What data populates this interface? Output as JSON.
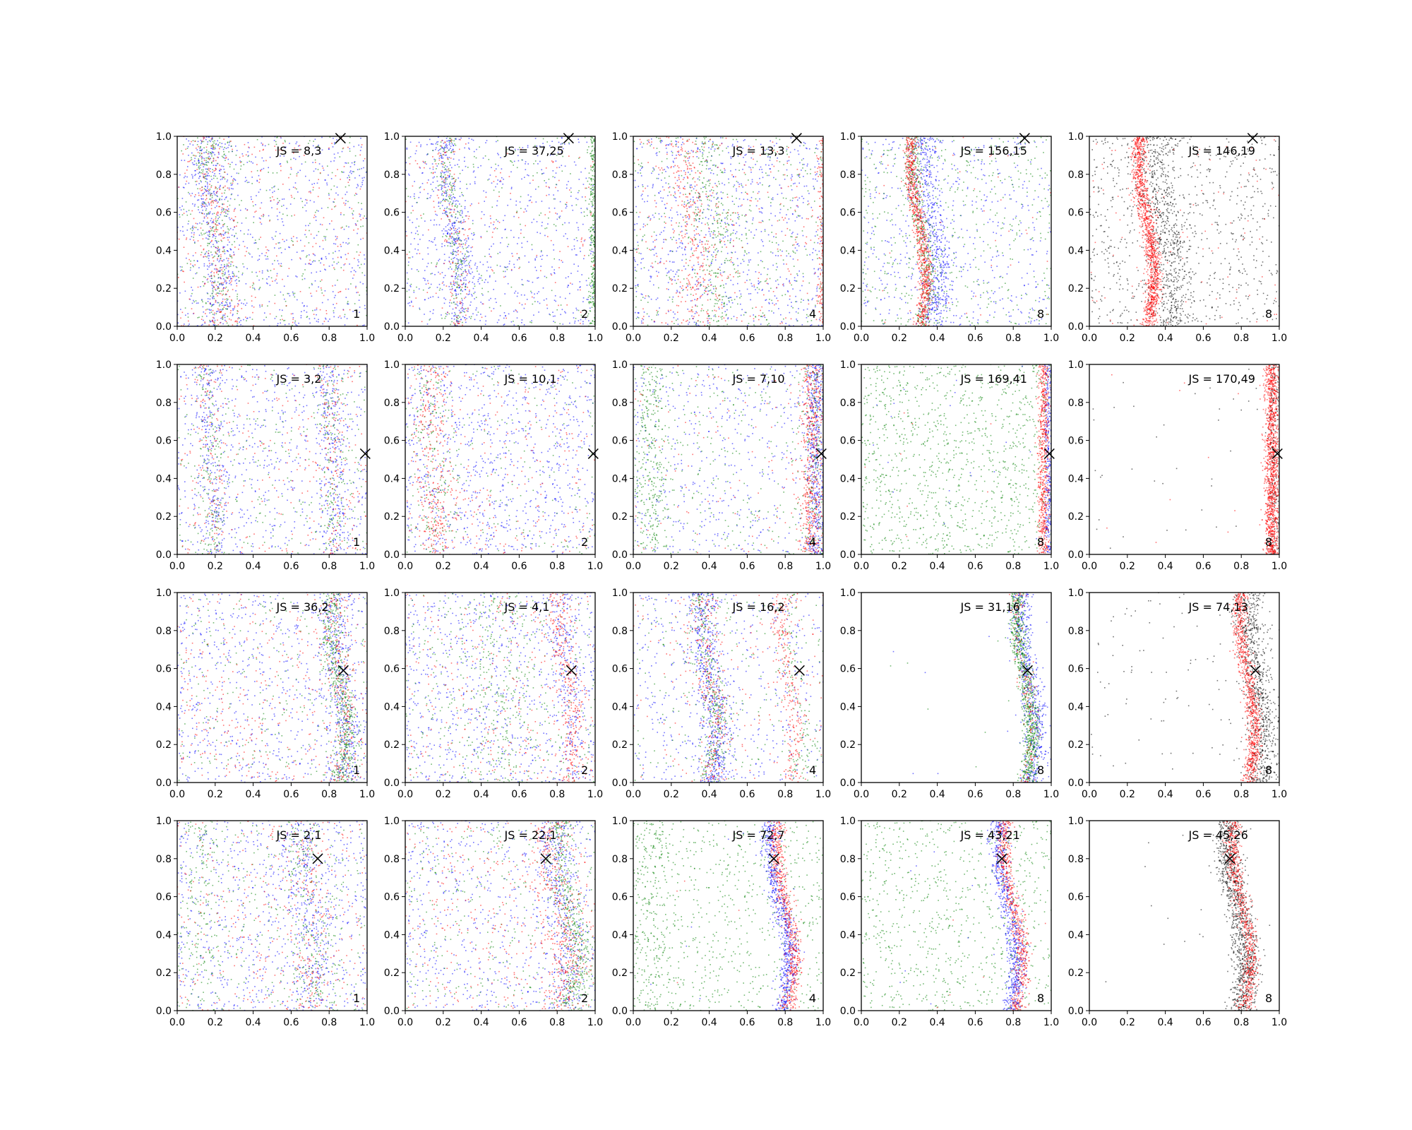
{
  "chart_data": {
    "type": "scatter",
    "layout": {
      "rows": 4,
      "cols": 5
    },
    "x_ticks": [
      "0.0",
      "0.2",
      "0.4",
      "0.6",
      "0.8",
      "1.0"
    ],
    "y_ticks": [
      "0.0",
      "0.2",
      "0.4",
      "0.6",
      "0.8",
      "1.0"
    ],
    "xlim": [
      0,
      1
    ],
    "ylim": [
      0,
      1
    ],
    "grid": false,
    "colors": {
      "blue": "#0000ff",
      "green": "#008000",
      "red": "#ff0000",
      "black": "#000000"
    },
    "panels": [
      {
        "label": "JS = 8,3",
        "n": "1",
        "marker": [
          0.86,
          0.99
        ],
        "series": [
          {
            "color": "blue",
            "bands": [
              {
                "x": 0.2,
                "amp": 0.03,
                "sd": 0.05,
                "count": 350
              }
            ],
            "uniform": 650
          },
          {
            "color": "green",
            "bands": [
              {
                "x": 0.2,
                "amp": 0.03,
                "sd": 0.05,
                "count": 250
              }
            ],
            "uniform": 300
          },
          {
            "color": "red",
            "bands": [
              {
                "x": 0.2,
                "amp": 0.03,
                "sd": 0.05,
                "count": 200
              }
            ],
            "uniform": 300
          }
        ]
      },
      {
        "label": "JS = 37,25",
        "n": "2",
        "marker": [
          0.86,
          0.99
        ],
        "series": [
          {
            "color": "blue",
            "bands": [
              {
                "x": 0.25,
                "amp": 0.04,
                "sd": 0.035,
                "count": 350
              }
            ],
            "uniform": 650
          },
          {
            "color": "green",
            "bands": [
              {
                "x": 0.25,
                "amp": 0.04,
                "sd": 0.03,
                "count": 200
              },
              {
                "x": 0.99,
                "amp": 0.0,
                "sd": 0.012,
                "count": 300
              }
            ],
            "uniform": 200
          },
          {
            "color": "red",
            "bands": [
              {
                "x": 0.25,
                "amp": 0.04,
                "sd": 0.035,
                "count": 120
              }
            ],
            "uniform": 160
          }
        ]
      },
      {
        "label": "JS = 13,3",
        "n": "4",
        "marker": [
          0.86,
          0.99
        ],
        "series": [
          {
            "color": "blue",
            "uniform": 800
          },
          {
            "color": "green",
            "bands": [
              {
                "x": 0.42,
                "amp": 0.04,
                "sd": 0.07,
                "count": 250
              }
            ],
            "uniform": 400
          },
          {
            "color": "red",
            "bands": [
              {
                "x": 0.3,
                "amp": 0.04,
                "sd": 0.05,
                "count": 250
              },
              {
                "x": 0.99,
                "amp": 0.0,
                "sd": 0.01,
                "count": 150
              }
            ],
            "uniform": 300
          }
        ]
      },
      {
        "label": "JS = 156,15",
        "n": "8",
        "marker": [
          0.86,
          0.99
        ],
        "series": [
          {
            "color": "blue",
            "bands": [
              {
                "x": 0.37,
                "amp": 0.04,
                "sd": 0.04,
                "count": 550
              }
            ],
            "uniform": 500
          },
          {
            "color": "green",
            "bands": [
              {
                "x": 0.31,
                "amp": 0.04,
                "sd": 0.025,
                "count": 400
              }
            ],
            "uniform": 500
          },
          {
            "color": "red",
            "bands": [
              {
                "x": 0.3,
                "amp": 0.04,
                "sd": 0.018,
                "count": 800
              }
            ],
            "uniform": 40
          }
        ]
      },
      {
        "label": "JS = 146,19",
        "n": "8",
        "marker": [
          0.86,
          0.99
        ],
        "series": [
          {
            "color": "black",
            "bands": [
              {
                "x": 0.4,
                "amp": 0.04,
                "sd": 0.05,
                "count": 600
              }
            ],
            "uniform": 800
          },
          {
            "color": "red",
            "bands": [
              {
                "x": 0.3,
                "amp": 0.04,
                "sd": 0.02,
                "count": 1200
              }
            ],
            "uniform": 100
          }
        ]
      },
      {
        "label": "JS = 3,2",
        "n": "1",
        "marker": [
          0.99,
          0.53
        ],
        "series": [
          {
            "color": "blue",
            "bands": [
              {
                "x": 0.18,
                "amp": 0.02,
                "sd": 0.04,
                "count": 200
              },
              {
                "x": 0.82,
                "amp": 0.02,
                "sd": 0.04,
                "count": 250
              }
            ],
            "uniform": 600
          },
          {
            "color": "green",
            "bands": [
              {
                "x": 0.18,
                "amp": 0.02,
                "sd": 0.04,
                "count": 150
              },
              {
                "x": 0.82,
                "amp": 0.02,
                "sd": 0.04,
                "count": 150
              }
            ],
            "uniform": 250
          },
          {
            "color": "red",
            "bands": [
              {
                "x": 0.18,
                "amp": 0.02,
                "sd": 0.04,
                "count": 100
              },
              {
                "x": 0.82,
                "amp": 0.02,
                "sd": 0.04,
                "count": 100
              }
            ],
            "uniform": 250
          }
        ]
      },
      {
        "label": "JS = 10,1",
        "n": "2",
        "marker": [
          0.99,
          0.53
        ],
        "series": [
          {
            "color": "blue",
            "uniform": 900
          },
          {
            "color": "green",
            "bands": [
              {
                "x": 0.15,
                "amp": 0.02,
                "sd": 0.05,
                "count": 150
              }
            ],
            "uniform": 200
          },
          {
            "color": "red",
            "bands": [
              {
                "x": 0.15,
                "amp": 0.02,
                "sd": 0.05,
                "count": 300
              }
            ],
            "uniform": 250
          }
        ]
      },
      {
        "label": "JS = 7,10",
        "n": "4",
        "marker": [
          0.99,
          0.53
        ],
        "series": [
          {
            "color": "blue",
            "bands": [
              {
                "x": 0.96,
                "amp": 0.0,
                "sd": 0.025,
                "count": 450
              }
            ],
            "uniform": 500
          },
          {
            "color": "green",
            "bands": [
              {
                "x": 0.1,
                "amp": 0.0,
                "sd": 0.04,
                "count": 300
              },
              {
                "x": 0.95,
                "amp": 0.0,
                "sd": 0.03,
                "count": 150
              }
            ],
            "uniform": 300
          },
          {
            "color": "red",
            "bands": [
              {
                "x": 0.94,
                "amp": 0.0,
                "sd": 0.03,
                "count": 500
              }
            ],
            "uniform": 120
          }
        ]
      },
      {
        "label": "JS = 169,41",
        "n": "8",
        "marker": [
          0.99,
          0.53
        ],
        "series": [
          {
            "color": "green",
            "uniform": 1100
          },
          {
            "color": "blue",
            "bands": [
              {
                "x": 0.985,
                "amp": 0.0,
                "sd": 0.01,
                "count": 300
              }
            ],
            "uniform": 20
          },
          {
            "color": "red",
            "bands": [
              {
                "x": 0.96,
                "amp": 0.0,
                "sd": 0.015,
                "count": 600
              }
            ],
            "uniform": 10
          }
        ]
      },
      {
        "label": "JS = 170,49",
        "n": "8",
        "marker": [
          0.99,
          0.53
        ],
        "series": [
          {
            "color": "black",
            "bands": [
              {
                "x": 0.97,
                "amp": 0.0,
                "sd": 0.015,
                "count": 200
              }
            ],
            "uniform": 40
          },
          {
            "color": "red",
            "bands": [
              {
                "x": 0.96,
                "amp": 0.0,
                "sd": 0.02,
                "count": 1200
              }
            ],
            "uniform": 10
          }
        ]
      },
      {
        "label": "JS = 36,2",
        "n": "1",
        "marker": [
          0.875,
          0.59
        ],
        "series": [
          {
            "color": "blue",
            "bands": [
              {
                "x": 0.86,
                "amp": 0.04,
                "sd": 0.04,
                "count": 350
              }
            ],
            "uniform": 700
          },
          {
            "color": "green",
            "bands": [
              {
                "x": 0.85,
                "amp": 0.04,
                "sd": 0.03,
                "count": 500
              }
            ],
            "uniform": 250
          },
          {
            "color": "red",
            "bands": [
              {
                "x": 0.85,
                "amp": 0.04,
                "sd": 0.04,
                "count": 200
              }
            ],
            "uniform": 350
          }
        ]
      },
      {
        "label": "JS = 4,1",
        "n": "2",
        "marker": [
          0.875,
          0.59
        ],
        "series": [
          {
            "color": "blue",
            "bands": [
              {
                "x": 0.85,
                "amp": 0.04,
                "sd": 0.04,
                "count": 200
              }
            ],
            "uniform": 800
          },
          {
            "color": "green",
            "bands": [
              {
                "x": 0.5,
                "amp": 0.02,
                "sd": 0.1,
                "count": 200
              }
            ],
            "uniform": 350
          },
          {
            "color": "red",
            "bands": [
              {
                "x": 0.85,
                "amp": 0.04,
                "sd": 0.03,
                "count": 300
              }
            ],
            "uniform": 300
          }
        ]
      },
      {
        "label": "JS = 16,2",
        "n": "4",
        "marker": [
          0.875,
          0.59
        ],
        "series": [
          {
            "color": "blue",
            "bands": [
              {
                "x": 0.4,
                "amp": 0.04,
                "sd": 0.04,
                "count": 550
              }
            ],
            "uniform": 500
          },
          {
            "color": "green",
            "bands": [
              {
                "x": 0.4,
                "amp": 0.04,
                "sd": 0.04,
                "count": 300
              },
              {
                "x": 0.85,
                "amp": 0.04,
                "sd": 0.03,
                "count": 100
              }
            ],
            "uniform": 200
          },
          {
            "color": "red",
            "bands": [
              {
                "x": 0.4,
                "amp": 0.04,
                "sd": 0.04,
                "count": 250
              },
              {
                "x": 0.82,
                "amp": 0.04,
                "sd": 0.03,
                "count": 250
              }
            ],
            "uniform": 150
          }
        ]
      },
      {
        "label": "JS = 31,16",
        "n": "8",
        "marker": [
          0.875,
          0.59
        ],
        "series": [
          {
            "color": "blue",
            "bands": [
              {
                "x": 0.88,
                "amp": 0.04,
                "sd": 0.03,
                "count": 600
              }
            ],
            "uniform": 8
          },
          {
            "color": "green",
            "bands": [
              {
                "x": 0.86,
                "amp": 0.04,
                "sd": 0.022,
                "count": 800
              }
            ],
            "uniform": 8
          },
          {
            "color": "red",
            "bands": [
              {
                "x": 0.86,
                "amp": 0.04,
                "sd": 0.02,
                "count": 150
              }
            ],
            "uniform": 0
          }
        ]
      },
      {
        "label": "JS = 74,13",
        "n": "8",
        "marker": [
          0.875,
          0.59
        ],
        "series": [
          {
            "color": "black",
            "bands": [
              {
                "x": 0.88,
                "amp": 0.04,
                "sd": 0.04,
                "count": 800
              }
            ],
            "uniform": 100
          },
          {
            "color": "red",
            "bands": [
              {
                "x": 0.83,
                "amp": 0.04,
                "sd": 0.02,
                "count": 900
              }
            ],
            "uniform": 0
          }
        ]
      },
      {
        "label": "JS = 2,1",
        "n": "1",
        "marker": [
          0.74,
          0.8
        ],
        "series": [
          {
            "color": "blue",
            "bands": [
              {
                "x": 0.7,
                "amp": 0.03,
                "sd": 0.06,
                "count": 300
              }
            ],
            "uniform": 700
          },
          {
            "color": "green",
            "bands": [
              {
                "x": 0.7,
                "amp": 0.03,
                "sd": 0.06,
                "count": 200
              },
              {
                "x": 0.12,
                "amp": 0.0,
                "sd": 0.05,
                "count": 150
              }
            ],
            "uniform": 300
          },
          {
            "color": "red",
            "bands": [
              {
                "x": 0.7,
                "amp": 0.03,
                "sd": 0.06,
                "count": 150
              }
            ],
            "uniform": 300
          }
        ]
      },
      {
        "label": "JS = 22,1",
        "n": "2",
        "marker": [
          0.74,
          0.8
        ],
        "series": [
          {
            "color": "blue",
            "bands": [
              {
                "x": 0.82,
                "amp": 0.05,
                "sd": 0.05,
                "count": 350
              }
            ],
            "uniform": 600
          },
          {
            "color": "green",
            "bands": [
              {
                "x": 0.86,
                "amp": 0.05,
                "sd": 0.04,
                "count": 450
              }
            ],
            "uniform": 300
          },
          {
            "color": "red",
            "bands": [
              {
                "x": 0.8,
                "amp": 0.05,
                "sd": 0.05,
                "count": 350
              }
            ],
            "uniform": 350
          }
        ]
      },
      {
        "label": "JS = 72,7",
        "n": "4",
        "marker": [
          0.74,
          0.8
        ],
        "series": [
          {
            "color": "green",
            "bands": [
              {
                "x": 0.1,
                "amp": 0.0,
                "sd": 0.05,
                "count": 200
              }
            ],
            "uniform": 700
          },
          {
            "color": "blue",
            "bands": [
              {
                "x": 0.77,
                "amp": 0.05,
                "sd": 0.025,
                "count": 700
              }
            ],
            "uniform": 10
          },
          {
            "color": "red",
            "bands": [
              {
                "x": 0.8,
                "amp": 0.05,
                "sd": 0.02,
                "count": 600
              }
            ],
            "uniform": 5
          }
        ]
      },
      {
        "label": "JS = 43,21",
        "n": "8",
        "marker": [
          0.74,
          0.8
        ],
        "series": [
          {
            "color": "green",
            "uniform": 800
          },
          {
            "color": "blue",
            "bands": [
              {
                "x": 0.77,
                "amp": 0.05,
                "sd": 0.025,
                "count": 700
              }
            ],
            "uniform": 10
          },
          {
            "color": "red",
            "bands": [
              {
                "x": 0.8,
                "amp": 0.05,
                "sd": 0.02,
                "count": 600
              }
            ],
            "uniform": 5
          }
        ]
      },
      {
        "label": "JS = 45,26",
        "n": "8",
        "marker": [
          0.74,
          0.8
        ],
        "series": [
          {
            "color": "black",
            "bands": [
              {
                "x": 0.78,
                "amp": 0.05,
                "sd": 0.035,
                "count": 1100
              }
            ],
            "uniform": 15
          },
          {
            "color": "red",
            "bands": [
              {
                "x": 0.8,
                "amp": 0.05,
                "sd": 0.02,
                "count": 700
              }
            ],
            "uniform": 0
          }
        ]
      }
    ]
  }
}
